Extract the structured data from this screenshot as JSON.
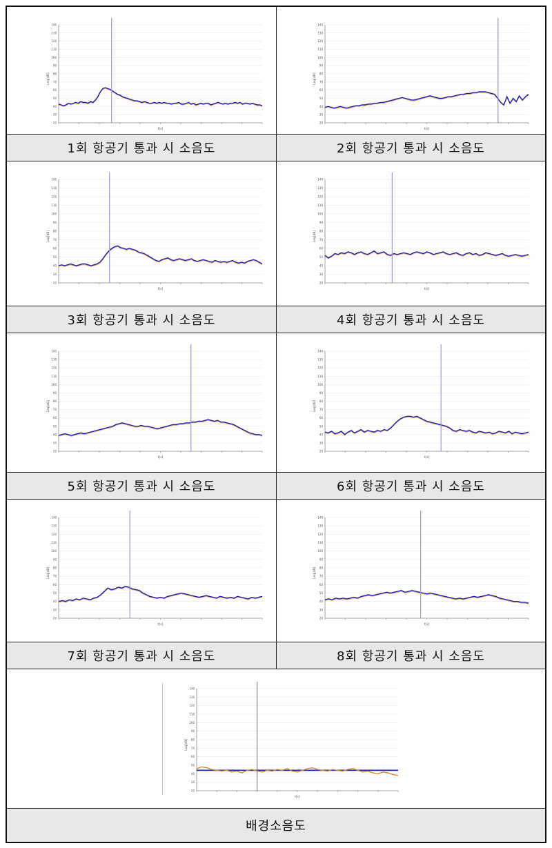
{
  "panels": [
    {
      "caption": "1회 항공기 통과 시 소음도"
    },
    {
      "caption": "2회 항공기 통과 시 소음도"
    },
    {
      "caption": "3회 항공기 통과 시 소음도"
    },
    {
      "caption": "4회 항공기 통과 시 소음도"
    },
    {
      "caption": "5회 항공기 통과 시 소음도"
    },
    {
      "caption": "6회 항공기 통과 시 소음도"
    },
    {
      "caption": "7회 항공기 통과 시 소음도"
    },
    {
      "caption": "8회 항공기 통과 시 소음도"
    },
    {
      "caption": "배경소음도"
    }
  ],
  "colors": {
    "series_main": "#1f1fa8",
    "series_alt": "#d08a3a",
    "marker_line": "#9a9ad6",
    "axis": "#888888",
    "grid": "#e8e8e8"
  },
  "chart_data": [
    {
      "type": "line",
      "ylabel": "Leq[dB]",
      "xlabel": "t[s]",
      "ylim": [
        20,
        140
      ],
      "yticks": [
        20,
        30,
        40,
        50,
        60,
        70,
        80,
        90,
        100,
        110,
        120,
        130,
        140
      ],
      "xlim": [
        0,
        100
      ],
      "marker_x": 26,
      "series": [
        {
          "values": [
            43,
            42,
            41,
            42,
            44,
            43,
            44,
            45,
            44,
            46,
            45,
            45,
            44,
            46,
            45,
            48,
            52,
            58,
            62,
            63,
            62,
            61,
            59,
            57,
            55,
            54,
            52,
            51,
            50,
            49,
            48,
            47,
            47,
            46,
            45,
            46,
            45,
            44,
            44,
            45,
            44,
            45,
            44,
            45,
            44,
            44,
            43,
            44,
            44,
            45,
            43,
            43,
            44,
            45,
            43,
            44,
            42,
            43,
            44,
            43,
            44,
            44,
            42,
            43,
            44,
            45,
            44,
            43,
            44,
            43,
            44,
            44,
            45,
            44,
            45,
            43,
            44,
            44,
            43,
            44,
            43,
            42,
            42,
            41
          ]
        }
      ]
    },
    {
      "type": "line",
      "ylabel": "Leq[dB]",
      "xlabel": "t[s]",
      "ylim": [
        20,
        140
      ],
      "yticks": [
        20,
        30,
        40,
        50,
        60,
        70,
        80,
        90,
        100,
        110,
        120,
        130,
        140
      ],
      "xlim": [
        0,
        100
      ],
      "marker_x": 85,
      "series": [
        {
          "values": [
            39,
            40,
            39,
            38,
            39,
            40,
            39,
            38,
            39,
            40,
            41,
            41,
            42,
            42,
            43,
            43,
            44,
            44,
            45,
            45,
            46,
            47,
            48,
            49,
            50,
            51,
            50,
            49,
            48,
            48,
            49,
            50,
            51,
            52,
            53,
            52,
            51,
            50,
            50,
            51,
            52,
            52,
            53,
            54,
            55,
            55,
            56,
            56,
            57,
            57,
            58,
            58,
            58,
            57,
            56,
            55,
            50,
            45,
            42,
            52,
            44,
            50,
            46,
            53,
            48,
            52,
            55
          ]
        }
      ]
    },
    {
      "type": "line",
      "ylabel": "Leq[dB]",
      "xlabel": "t[s]",
      "ylim": [
        20,
        140
      ],
      "yticks": [
        20,
        30,
        40,
        50,
        60,
        70,
        80,
        90,
        100,
        110,
        120,
        130,
        140
      ],
      "xlim": [
        0,
        100
      ],
      "marker_x": 25,
      "series": [
        {
          "values": [
            40,
            41,
            40,
            41,
            42,
            41,
            40,
            41,
            42,
            42,
            41,
            40,
            41,
            42,
            44,
            48,
            53,
            57,
            60,
            62,
            63,
            61,
            60,
            59,
            60,
            59,
            58,
            56,
            55,
            54,
            52,
            50,
            48,
            46,
            45,
            47,
            48,
            49,
            47,
            46,
            47,
            48,
            47,
            46,
            47,
            48,
            46,
            45,
            46,
            47,
            46,
            45,
            44,
            46,
            45,
            44,
            45,
            44,
            45,
            46,
            44,
            43,
            44,
            43,
            45,
            46,
            47,
            46,
            44,
            42
          ]
        }
      ]
    },
    {
      "type": "line",
      "ylabel": "Leq[dB]",
      "xlabel": "t[s]",
      "ylim": [
        20,
        140
      ],
      "yticks": [
        20,
        30,
        40,
        50,
        60,
        70,
        80,
        90,
        100,
        110,
        120,
        130,
        140
      ],
      "xlim": [
        0,
        100
      ],
      "marker_x": 33,
      "series": [
        {
          "values": [
            52,
            49,
            51,
            54,
            53,
            55,
            54,
            56,
            55,
            53,
            55,
            56,
            54,
            53,
            55,
            57,
            54,
            55,
            56,
            53,
            52,
            54,
            53,
            54,
            55,
            54,
            53,
            55,
            56,
            55,
            54,
            56,
            55,
            53,
            54,
            55,
            56,
            54,
            53,
            54,
            55,
            53,
            52,
            54,
            55,
            53,
            54,
            52,
            53,
            55,
            54,
            53,
            52,
            53,
            54,
            52,
            51,
            52,
            53,
            52,
            51,
            52,
            53
          ]
        }
      ]
    },
    {
      "type": "line",
      "ylabel": "Leq[dB]",
      "xlabel": "t[s]",
      "ylim": [
        20,
        140
      ],
      "yticks": [
        20,
        30,
        40,
        50,
        60,
        70,
        80,
        90,
        100,
        110,
        120,
        130,
        140
      ],
      "xlim": [
        0,
        100
      ],
      "marker_x": 65,
      "series": [
        {
          "values": [
            39,
            40,
            41,
            40,
            39,
            40,
            41,
            42,
            41,
            42,
            43,
            44,
            45,
            46,
            47,
            48,
            49,
            50,
            52,
            53,
            54,
            53,
            52,
            51,
            50,
            50,
            51,
            50,
            50,
            49,
            48,
            47,
            48,
            49,
            50,
            51,
            52,
            52,
            53,
            53,
            54,
            54,
            55,
            55,
            56,
            56,
            57,
            58,
            57,
            56,
            57,
            55,
            55,
            54,
            53,
            52,
            50,
            48,
            46,
            44,
            42,
            41,
            40,
            40,
            39
          ]
        }
      ]
    },
    {
      "type": "line",
      "ylabel": "Leq[dB]",
      "xlabel": "t[s]",
      "ylim": [
        20,
        140
      ],
      "yticks": [
        20,
        30,
        40,
        50,
        60,
        70,
        80,
        90,
        100,
        110,
        120,
        130,
        140
      ],
      "xlim": [
        0,
        100
      ],
      "marker_x": 57,
      "series": [
        {
          "values": [
            43,
            42,
            44,
            41,
            42,
            44,
            40,
            43,
            45,
            42,
            44,
            46,
            43,
            45,
            44,
            43,
            45,
            44,
            46,
            45,
            48,
            52,
            56,
            59,
            61,
            62,
            62,
            61,
            62,
            60,
            58,
            56,
            55,
            54,
            53,
            52,
            51,
            50,
            48,
            45,
            44,
            46,
            45,
            44,
            45,
            43,
            42,
            44,
            43,
            42,
            43,
            41,
            42,
            44,
            43,
            42,
            44,
            41,
            43,
            42,
            41,
            42,
            43
          ]
        }
      ]
    },
    {
      "type": "line",
      "ylabel": "Leq[dB]",
      "xlabel": "t[s]",
      "ylim": [
        20,
        140
      ],
      "yticks": [
        20,
        30,
        40,
        50,
        60,
        70,
        80,
        90,
        100,
        110,
        120,
        130,
        140
      ],
      "xlim": [
        0,
        100
      ],
      "marker_x": 35,
      "series": [
        {
          "values": [
            40,
            41,
            40,
            42,
            41,
            43,
            42,
            44,
            43,
            42,
            44,
            45,
            48,
            52,
            56,
            54,
            55,
            57,
            56,
            58,
            57,
            55,
            54,
            53,
            50,
            48,
            46,
            45,
            44,
            45,
            44,
            46,
            47,
            48,
            49,
            50,
            49,
            48,
            47,
            46,
            45,
            46,
            47,
            46,
            45,
            44,
            46,
            45,
            44,
            45,
            44,
            46,
            45,
            44,
            43,
            45,
            44,
            45,
            46
          ]
        }
      ]
    },
    {
      "type": "line",
      "ylabel": "Leq[dB]",
      "xlabel": "t[s]",
      "ylim": [
        20,
        140
      ],
      "yticks": [
        20,
        30,
        40,
        50,
        60,
        70,
        80,
        90,
        100,
        110,
        120,
        130,
        140
      ],
      "xlim": [
        0,
        100
      ],
      "marker_x": 47,
      "series": [
        {
          "values": [
            42,
            43,
            42,
            44,
            43,
            44,
            43,
            44,
            45,
            44,
            46,
            47,
            48,
            47,
            48,
            49,
            50,
            51,
            50,
            51,
            52,
            53,
            51,
            52,
            53,
            52,
            51,
            50,
            49,
            50,
            49,
            48,
            47,
            46,
            45,
            44,
            43,
            44,
            43,
            44,
            45,
            46,
            45,
            46,
            47,
            48,
            47,
            46,
            44,
            43,
            42,
            41,
            40,
            40,
            39,
            39,
            38
          ]
        }
      ]
    },
    {
      "type": "line",
      "ylabel": "Leq[dB]",
      "xlabel": "t[s]",
      "ylim": [
        20,
        140
      ],
      "yticks": [
        20,
        30,
        40,
        50,
        60,
        70,
        80,
        90,
        100,
        110,
        120,
        130,
        140
      ],
      "xlim": [
        0,
        100
      ],
      "marker_x": 30,
      "series": [
        {
          "values": [
            44,
            44,
            44,
            44,
            44,
            44,
            44,
            44,
            44,
            44,
            44,
            44
          ]
        },
        {
          "values": [
            46,
            48,
            47,
            45,
            44,
            43,
            44,
            42,
            43,
            41,
            44,
            45,
            43,
            42,
            44,
            43,
            45,
            44,
            46,
            43,
            42,
            44,
            46,
            47,
            45,
            44,
            43,
            45,
            44,
            43,
            45,
            46,
            44,
            42,
            43,
            41,
            40,
            42,
            41,
            39,
            38
          ]
        }
      ]
    }
  ]
}
